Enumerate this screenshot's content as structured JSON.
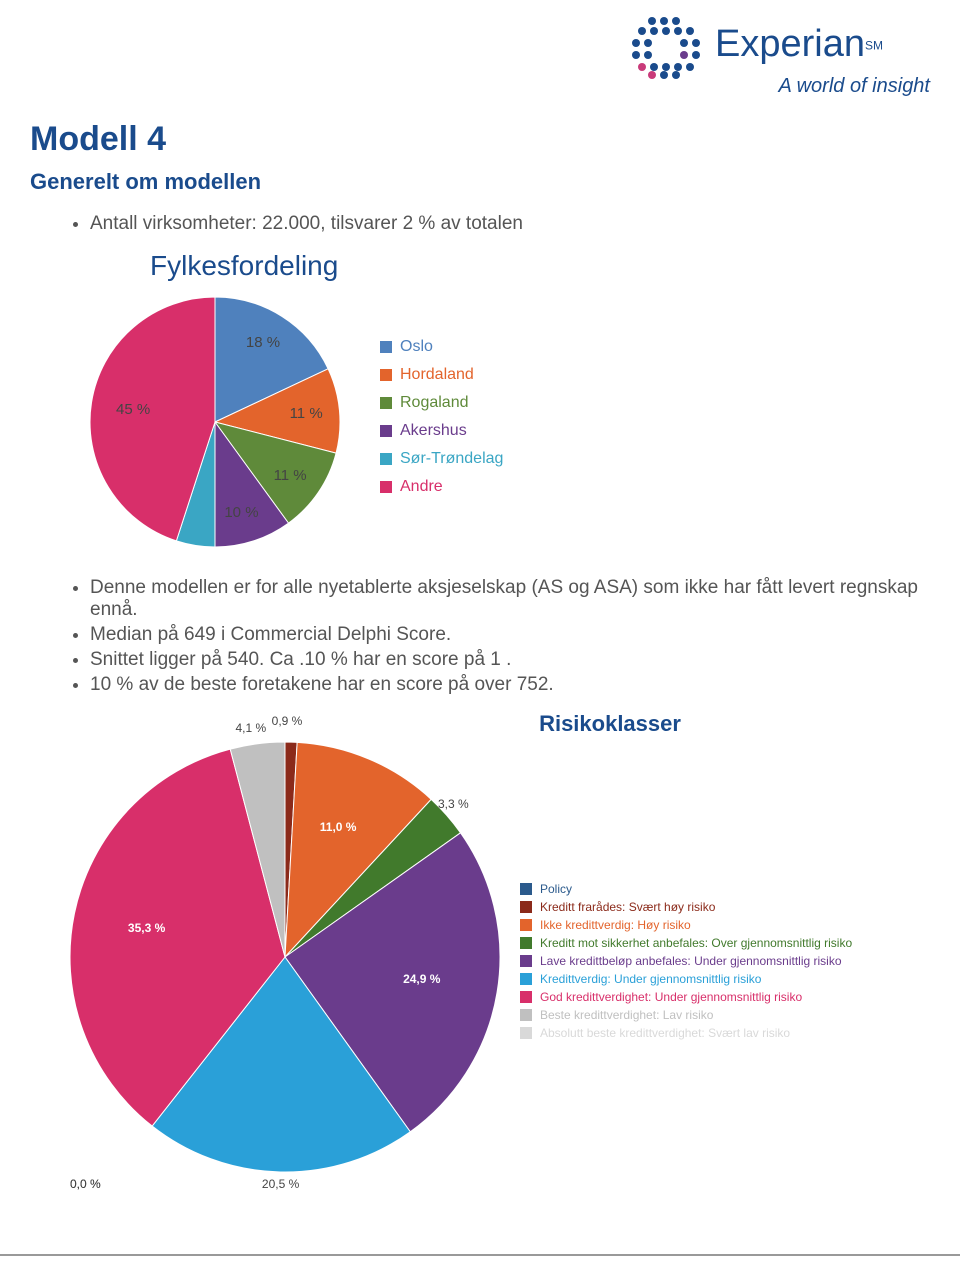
{
  "brand": {
    "name": "Experian",
    "tagline": "A world of insight",
    "color": "#1a4b8c",
    "dot_colors_main": "#1a4b8c",
    "dot_colors_accent1": "#c93b7a",
    "dot_colors_accent2": "#6a3c8c"
  },
  "title": "Modell 4",
  "subtitle": "Generelt om modellen",
  "bullets_top": [
    "Antall virksomheter: 22.000, tilsvarer 2 % av totalen"
  ],
  "bullets_mid": [
    "Denne modellen er for alle nyetablerte aksjeselskap (AS og ASA) som ikke har fått levert regnskap ennå.",
    "Median på 649 i Commercial Delphi Score.",
    "Snittet ligger på 540. Ca .10 % har en score på 1 .",
    "10 % av de beste foretakene har en score på over 752."
  ],
  "fylke_chart": {
    "title": "Fylkesfordeling",
    "type": "pie",
    "slices": [
      {
        "label": "Oslo",
        "value": 18,
        "display": "18 %",
        "color": "#4f81bd"
      },
      {
        "label": "Hordaland",
        "value": 11,
        "display": "11 %",
        "color": "#e3642c"
      },
      {
        "label": "Rogaland",
        "value": 11,
        "display": "11 %",
        "color": "#5f8a3a"
      },
      {
        "label": "Akershus",
        "value": 10,
        "display": "10 %",
        "color": "#6a3c8c"
      },
      {
        "label": "Sør-Trøndelag",
        "value": 5,
        "display": "",
        "color": "#3aa6c4"
      },
      {
        "label": "Andre",
        "value": 45,
        "display": "45 %",
        "color": "#d82f6a"
      }
    ]
  },
  "risk_chart": {
    "title": "Risikoklasser",
    "type": "pie",
    "slices": [
      {
        "label": "Policy",
        "value": 0.0,
        "display": "0,0 %",
        "color": "#2b5a8c"
      },
      {
        "label": "Kreditt frarådes: Svært høy risiko",
        "value": 0.9,
        "display": "0,9 %",
        "color": "#8b2a1a"
      },
      {
        "label": "Ikke kredittverdig: Høy risiko",
        "value": 11.0,
        "display": "11,0 %",
        "color": "#e3642c"
      },
      {
        "label": "Kreditt mot sikkerhet anbefales: Over gjennomsnittlig risiko",
        "value": 3.3,
        "display": "3,3 %",
        "color": "#417a2c"
      },
      {
        "label": "Lave kredittbeløp anbefales: Under gjennomsnittlig risiko",
        "value": 24.9,
        "display": "24,9 %",
        "color": "#6a3c8c"
      },
      {
        "label": "Kredittverdig: Under gjennomsnittlig risiko",
        "value": 20.5,
        "display": "20,5 %",
        "color": "#2aa0d8"
      },
      {
        "label": "God kredittverdighet: Under gjennomsnittlig risiko",
        "value": 35.3,
        "display": "35,3 %",
        "color": "#d82f6a"
      },
      {
        "label": "Beste kredittverdighet: Lav risiko",
        "value": 4.1,
        "display": "4,1 %",
        "color": "#c0c0c0"
      },
      {
        "label": "Absolutt beste kredittverdighet: Svært lav risiko",
        "value": 0.0,
        "display": "0,0 %",
        "color": "#d9d9d9"
      }
    ]
  }
}
